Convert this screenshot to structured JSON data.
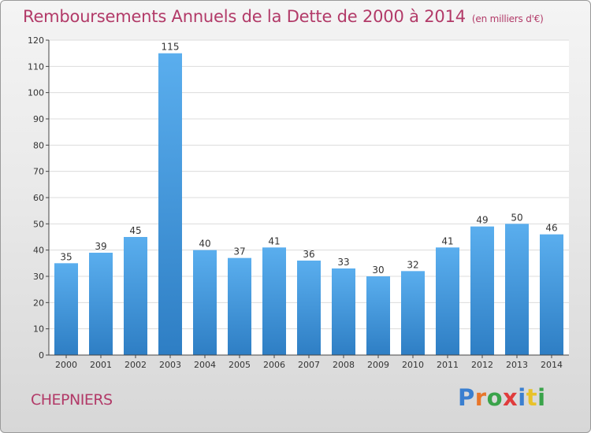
{
  "title": "Remboursements Annuels de la Dette de 2000 à 2014",
  "unit": "(en milliers d'€)",
  "city": "CHEPNIERS",
  "logo": {
    "text": "Proxiti",
    "letters": [
      {
        "ch": "P",
        "color": "#3a7fd0"
      },
      {
        "ch": "r",
        "color": "#e8762a"
      },
      {
        "ch": "o",
        "color": "#3aa34a"
      },
      {
        "ch": "x",
        "color": "#e03c3c"
      },
      {
        "ch": "i",
        "color": "#3a7fd0"
      },
      {
        "ch": "t",
        "color": "#e8c22a"
      },
      {
        "ch": "i",
        "color": "#3aa34a"
      }
    ]
  },
  "colors": {
    "title": "#b23a68",
    "bar_top": "#5aaeee",
    "bar_bottom": "#2e7ec4",
    "grid": "#dcdcdc",
    "axis": "#444444"
  },
  "chart_data": {
    "type": "bar",
    "title": "Remboursements Annuels de la Dette de 2000 à 2014",
    "xlabel": "",
    "ylabel": "",
    "categories": [
      "2000",
      "2001",
      "2002",
      "2003",
      "2004",
      "2005",
      "2006",
      "2007",
      "2008",
      "2009",
      "2010",
      "2011",
      "2012",
      "2013",
      "2014"
    ],
    "values": [
      35,
      39,
      45,
      115,
      40,
      37,
      41,
      36,
      33,
      30,
      32,
      41,
      49,
      50,
      46
    ],
    "ylim": [
      0,
      120
    ],
    "yticks": [
      0,
      10,
      20,
      30,
      40,
      50,
      60,
      70,
      80,
      90,
      100,
      110,
      120
    ],
    "grid": true,
    "legend": "none"
  }
}
